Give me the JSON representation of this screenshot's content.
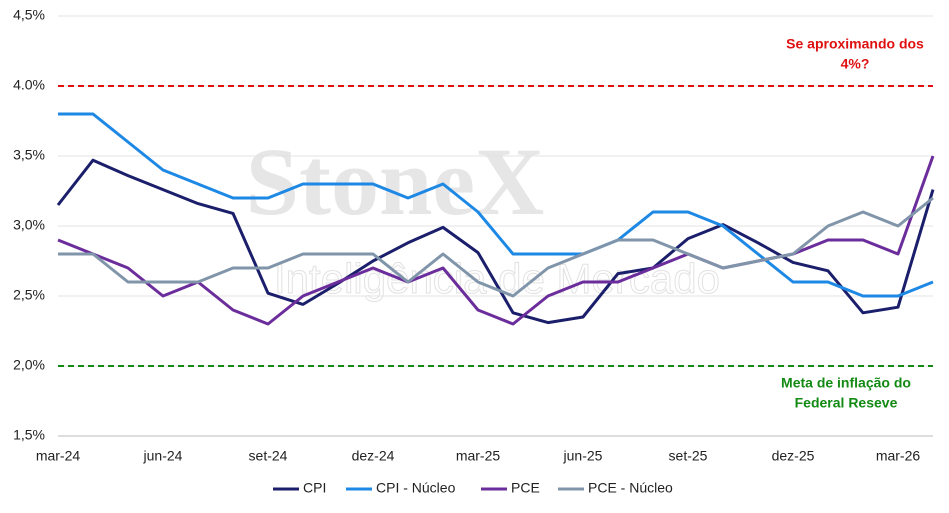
{
  "chart_data": {
    "type": "line",
    "watermark": [
      "StoneX",
      "Inteligência de Mercado"
    ],
    "categories": [
      "mar-24",
      null,
      null,
      "jun-24",
      null,
      null,
      "set-24",
      null,
      null,
      "dez-24",
      null,
      null,
      "mar-25",
      null,
      null,
      "jun-25",
      null,
      null,
      "set-25",
      null,
      null,
      "dez-25",
      null,
      null,
      "mar-26",
      null
    ],
    "series": [
      {
        "name": "CPI",
        "color": "#1b1f6b",
        "values": [
          3.15,
          3.47,
          3.36,
          3.26,
          3.16,
          3.09,
          2.52,
          2.44,
          2.59,
          2.75,
          2.88,
          2.99,
          2.81,
          2.38,
          2.31,
          2.35,
          2.66,
          2.7,
          2.91,
          3.01,
          2.88,
          2.74,
          2.68,
          2.38,
          2.42,
          3.26
        ]
      },
      {
        "name": "CPI - Núcleo",
        "color": "#1e88e5",
        "values": [
          3.8,
          3.8,
          3.6,
          3.4,
          3.3,
          3.2,
          3.2,
          3.3,
          3.3,
          3.3,
          3.2,
          3.3,
          3.1,
          2.8,
          2.8,
          2.8,
          2.9,
          3.1,
          3.1,
          3.0,
          2.8,
          2.6,
          2.6,
          2.5,
          2.5,
          2.6
        ]
      },
      {
        "name": "PCE",
        "color": "#6b2d9b",
        "values": [
          2.9,
          2.8,
          2.7,
          2.5,
          2.6,
          2.4,
          2.3,
          2.5,
          2.6,
          2.7,
          2.6,
          2.7,
          2.4,
          2.3,
          2.5,
          2.6,
          2.6,
          2.7,
          2.8,
          2.7,
          2.75,
          2.8,
          2.9,
          2.9,
          2.8,
          3.5
        ]
      },
      {
        "name": "PCE - Núcleo",
        "color": "#8095aa",
        "values": [
          2.8,
          2.8,
          2.6,
          2.6,
          2.6,
          2.7,
          2.7,
          2.8,
          2.8,
          2.8,
          2.6,
          2.8,
          2.6,
          2.5,
          2.7,
          2.8,
          2.9,
          2.9,
          2.8,
          2.7,
          2.75,
          2.8,
          3.0,
          3.1,
          3.0,
          3.2
        ]
      }
    ],
    "ylim": [
      1.5,
      4.5
    ],
    "yticks": [
      {
        "value": 1.5,
        "label": "1,5%"
      },
      {
        "value": 2.0,
        "label": "2,0%"
      },
      {
        "value": 2.5,
        "label": "2,5%"
      },
      {
        "value": 3.0,
        "label": "3,0%"
      },
      {
        "value": 3.5,
        "label": "3,5%"
      },
      {
        "value": 4.0,
        "label": "4.0%"
      },
      {
        "value": 4.5,
        "label": "4,5%"
      }
    ],
    "grid": true,
    "legend": "bottom",
    "reference_lines": [
      {
        "value": 4.0,
        "color": "#e01010",
        "label": [
          "Se aproximando dos",
          "4%?"
        ]
      },
      {
        "value": 2.0,
        "color": "#138a13",
        "label": [
          "Meta de inflação do",
          "Federal Reseve"
        ]
      }
    ]
  }
}
